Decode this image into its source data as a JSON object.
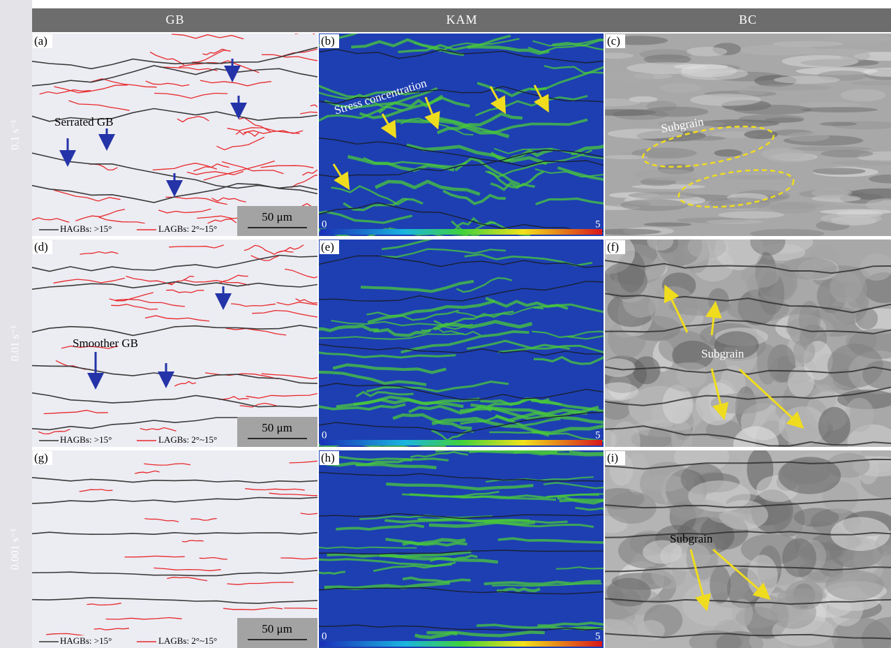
{
  "header": {
    "columns": [
      "GB",
      "KAM",
      "BC"
    ]
  },
  "rows": [
    {
      "label": "0.1 s⁻¹",
      "panels": [
        {
          "tag": "(a)",
          "annotation": "Serrated GB",
          "legend": [
            "HAGBs: >15°",
            "LAGBs: 2°~15°"
          ],
          "scale_bar": "50 μm"
        },
        {
          "tag": "(b)",
          "annotation": "Stress concentration",
          "colorbar": [
            "0",
            "5"
          ]
        },
        {
          "tag": "(c)",
          "annotation": "Subgrain"
        }
      ]
    },
    {
      "label": "0.01 s⁻¹",
      "panels": [
        {
          "tag": "(d)",
          "annotation": "Smoother GB",
          "legend": [
            "HAGBs: >15°",
            "LAGBs: 2°~15°"
          ],
          "scale_bar": "50 μm"
        },
        {
          "tag": "(e)",
          "colorbar": [
            "0",
            "5"
          ]
        },
        {
          "tag": "(f)",
          "annotation": "Subgrain"
        }
      ]
    },
    {
      "label": "0.001 s⁻¹",
      "panels": [
        {
          "tag": "(g)",
          "legend": [
            "HAGBs: >15°",
            "LAGBs: 2°~15°"
          ],
          "scale_bar": "50 μm"
        },
        {
          "tag": "(h)",
          "colorbar": [
            "0",
            "5"
          ]
        },
        {
          "tag": "(i)",
          "annotation": "Subgrain"
        }
      ]
    }
  ]
}
